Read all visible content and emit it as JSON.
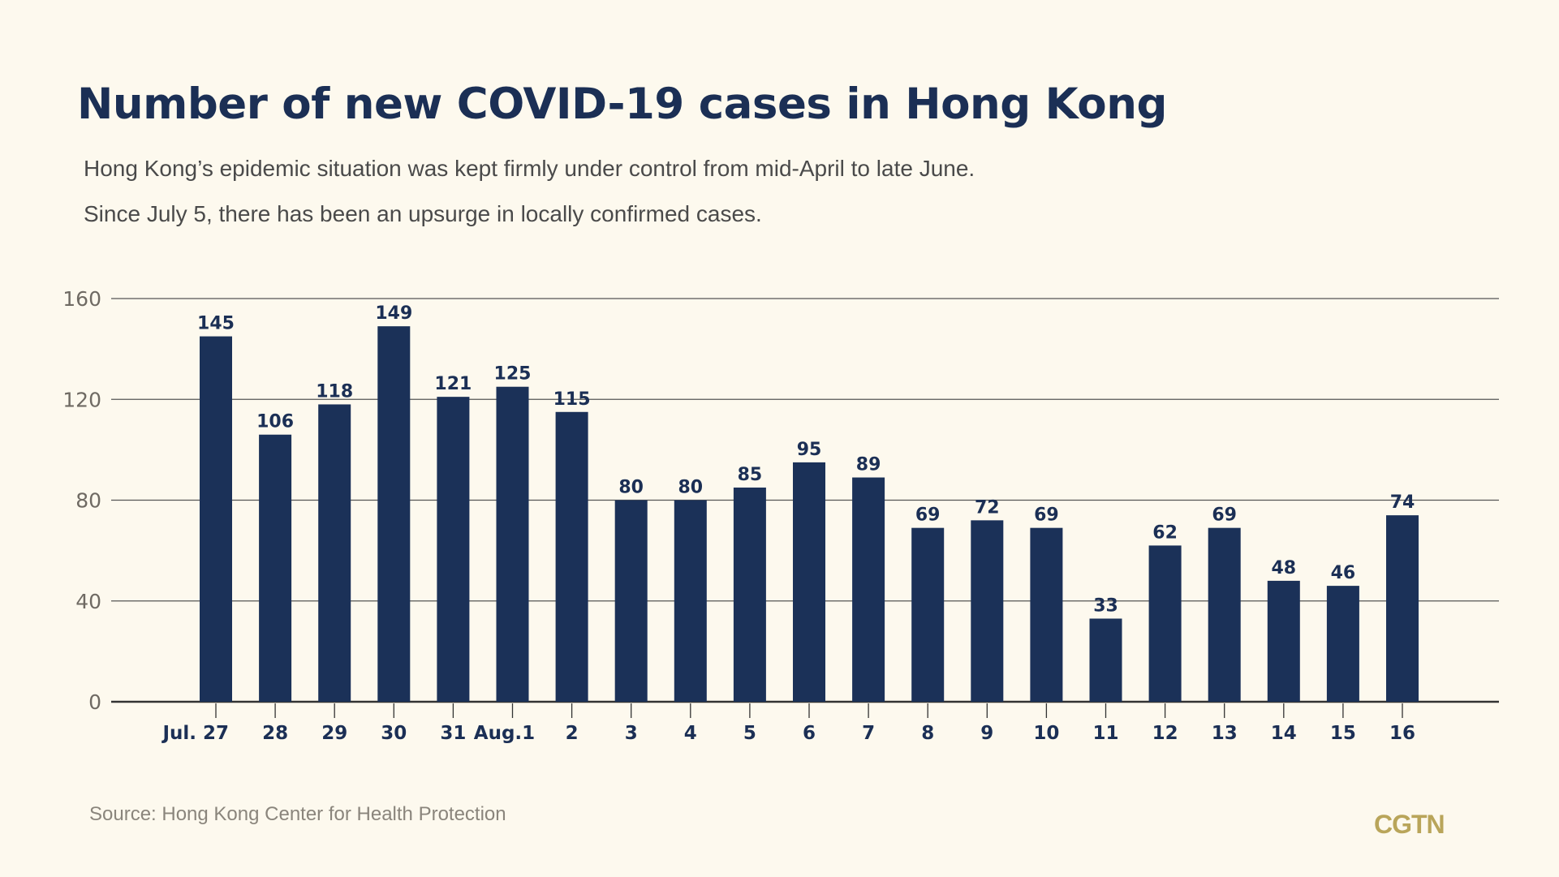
{
  "title": "Number of new COVID-19 cases in Hong Kong",
  "subtitle_lines": [
    "Hong Kong’s epidemic situation was kept firmly under control from mid-April to late June.",
    "Since July 5, there has been an upsurge in locally confirmed cases."
  ],
  "source": "Source: Hong Kong Center for Health Protection",
  "logo": "CGTN",
  "colors": {
    "background": "#fdf9ee",
    "bar": "#1b3158",
    "title": "#1b2f55",
    "logo": "#b9a55a"
  },
  "chart_data": {
    "type": "bar",
    "month_label": "Jul.",
    "categories": [
      "27",
      "28",
      "29",
      "30",
      "31",
      "Aug.1",
      "2",
      "3",
      "4",
      "5",
      "6",
      "7",
      "8",
      "9",
      "10",
      "11",
      "12",
      "13",
      "14",
      "15",
      "16"
    ],
    "values": [
      145,
      106,
      118,
      149,
      121,
      125,
      115,
      80,
      80,
      85,
      95,
      89,
      69,
      72,
      69,
      33,
      62,
      69,
      48,
      46,
      74
    ],
    "ylim": [
      0,
      160
    ],
    "yticks": [
      0,
      40,
      80,
      120,
      160
    ],
    "grid": true,
    "xlabel": "",
    "ylabel": ""
  }
}
